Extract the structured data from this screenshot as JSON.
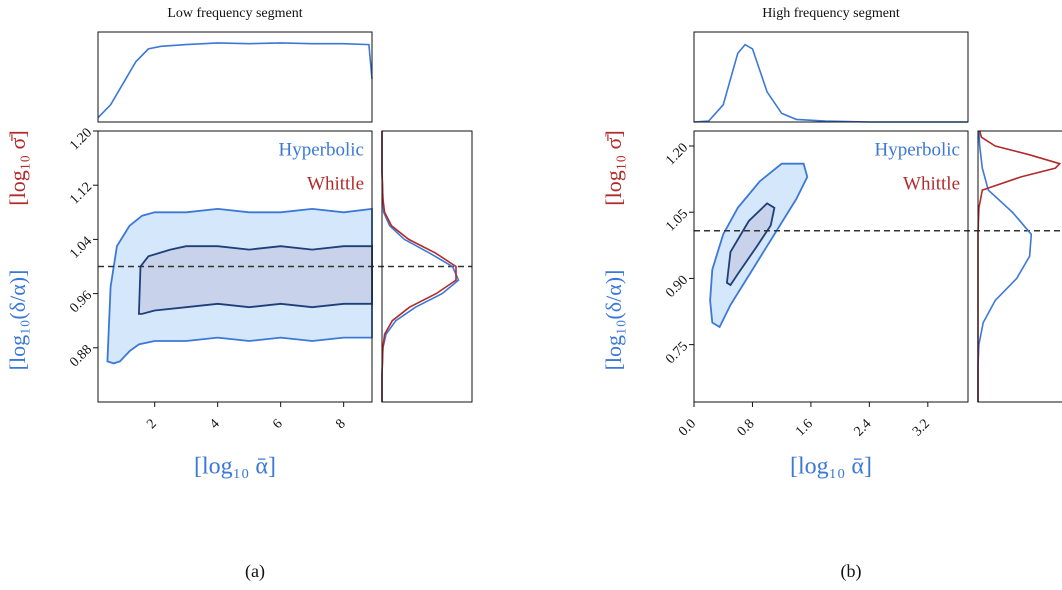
{
  "chart_data": [
    {
      "type": "contour",
      "title": "Low frequency segment",
      "panel_label": "(a)",
      "xlabel": "[log₁₀ ᾱ]",
      "xlim": [
        0.2,
        8.9
      ],
      "ylim": [
        0.8,
        1.2
      ],
      "xticks": [
        2,
        4,
        6,
        8
      ],
      "yticks": [
        0.88,
        0.96,
        1.04,
        1.12,
        {
          "value": 1.2,
          "label": "1.20"
        }
      ],
      "reference_y": 1.0,
      "marginal_lim": [
        0,
        1
      ],
      "series": [
        {
          "name": "Hyperbolic",
          "color": "#3b78d8",
          "ylabel": "[log₁₀(δ/α)]",
          "contours": [
            {
              "color": "#3b78d8",
              "fill": "#d5e7fb",
              "x": [
                0.5,
                0.6,
                0.8,
                1.2,
                1.6,
                2.0,
                3,
                4,
                5,
                6,
                7,
                8,
                8.9,
                8.9,
                8,
                7,
                6,
                5,
                4,
                3,
                2,
                1.5,
                1.2,
                0.9,
                0.7
              ],
              "y": [
                0.86,
                0.97,
                1.03,
                1.06,
                1.075,
                1.08,
                1.08,
                1.085,
                1.08,
                1.08,
                1.085,
                1.08,
                1.085,
                0.895,
                0.895,
                0.89,
                0.895,
                0.89,
                0.895,
                0.89,
                0.89,
                0.885,
                0.875,
                0.86,
                0.857
              ]
            },
            {
              "color": "#1f3f7a",
              "fill": "#c8d2ea",
              "x": [
                1.5,
                1.55,
                1.8,
                2.5,
                3,
                4,
                5,
                6,
                7,
                8,
                8.9,
                8.9,
                8,
                7,
                6,
                5,
                4,
                3,
                2,
                1.6
              ],
              "y": [
                0.93,
                1.0,
                1.015,
                1.025,
                1.03,
                1.03,
                1.025,
                1.03,
                1.025,
                1.03,
                1.03,
                0.945,
                0.945,
                0.94,
                0.945,
                0.94,
                0.945,
                0.94,
                0.935,
                0.93
              ]
            }
          ],
          "marginal_x": {
            "x": [
              0.2,
              0.6,
              1,
              1.4,
              1.8,
              2.2,
              3,
              4,
              5,
              6,
              7,
              8,
              8.8,
              8.9
            ],
            "values": [
              0.05,
              0.2,
              0.45,
              0.7,
              0.85,
              0.88,
              0.9,
              0.92,
              0.91,
              0.92,
              0.91,
              0.91,
              0.9,
              0.5
            ]
          },
          "marginal_y": {
            "y": [
              0.8,
              0.84,
              0.88,
              0.9,
              0.92,
              0.94,
              0.96,
              0.98,
              1.0,
              1.02,
              1.04,
              1.06,
              1.08,
              1.1,
              1.14,
              1.2
            ],
            "values": [
              0,
              0,
              0.01,
              0.047,
              0.16,
              0.39,
              0.7,
              0.89,
              0.82,
              0.55,
              0.26,
              0.09,
              0.02,
              0.01,
              0,
              0
            ]
          }
        },
        {
          "name": "Whittle",
          "color": "#b22b2b",
          "ylabel": "[log₁₀ σ̄]",
          "marginal_y": {
            "y": [
              0.8,
              0.84,
              0.88,
              0.9,
              0.92,
              0.94,
              0.96,
              0.98,
              1.0,
              1.02,
              1.04,
              1.06,
              1.08,
              1.1,
              1.14,
              1.2
            ],
            "values": [
              0,
              0,
              0.01,
              0.03,
              0.12,
              0.32,
              0.63,
              0.86,
              0.86,
              0.62,
              0.31,
              0.11,
              0.03,
              0.01,
              0,
              0
            ]
          }
        }
      ]
    },
    {
      "type": "contour",
      "title": "High frequency segment",
      "panel_label": "(b)",
      "xlabel": "[log₁₀ ᾱ]",
      "xlim": [
        0,
        3.75
      ],
      "ylim": [
        0.62,
        1.234
      ],
      "xticks": [
        {
          "value": 0,
          "label": "0.0"
        },
        0.8,
        1.6,
        2.4,
        3.2
      ],
      "yticks": [
        0.75,
        {
          "value": 0.9,
          "label": "0.90"
        },
        1.05,
        {
          "value": 1.2,
          "label": "1.20"
        }
      ],
      "reference_y": 1.008,
      "marginal_lim": [
        0,
        1
      ],
      "series": [
        {
          "name": "Hyperbolic",
          "color": "#3b78d8",
          "ylabel": "[log₁₀(δ/α)]",
          "contours": [
            {
              "color": "#3b78d8",
              "fill": "#d5e7fb",
              "x": [
                0.25,
                0.22,
                0.25,
                0.4,
                0.6,
                0.9,
                1.2,
                1.5,
                1.55,
                1.4,
                1.1,
                0.8,
                0.5,
                0.35
              ],
              "y": [
                0.8,
                0.85,
                0.92,
                1.0,
                1.06,
                1.12,
                1.16,
                1.16,
                1.13,
                1.08,
                1.0,
                0.92,
                0.84,
                0.79
              ]
            },
            {
              "color": "#1f3f7a",
              "fill": "#c8d2ea",
              "x": [
                0.45,
                0.5,
                0.75,
                1.0,
                1.1,
                1.05,
                0.85,
                0.6,
                0.5
              ],
              "y": [
                0.89,
                0.96,
                1.03,
                1.07,
                1.06,
                1.02,
                0.97,
                0.91,
                0.885
              ]
            }
          ],
          "marginal_x": {
            "x": [
              0,
              0.2,
              0.4,
              0.5,
              0.6,
              0.7,
              0.8,
              0.9,
              1.0,
              1.2,
              1.4,
              1.8,
              2.4,
              3.75
            ],
            "values": [
              0,
              0.01,
              0.2,
              0.5,
              0.8,
              0.9,
              0.85,
              0.6,
              0.35,
              0.1,
              0.03,
              0.01,
              0,
              0
            ]
          },
          "marginal_y": {
            "y": [
              0.62,
              0.7,
              0.75,
              0.8,
              0.85,
              0.9,
              0.95,
              1.0,
              1.05,
              1.1,
              1.15,
              1.2,
              1.234
            ],
            "values": [
              0,
              0,
              0.01,
              0.06,
              0.2,
              0.45,
              0.6,
              0.62,
              0.4,
              0.12,
              0.05,
              0.02,
              0.01
            ]
          }
        },
        {
          "name": "Whittle",
          "color": "#b22b2b",
          "ylabel": "[log₁₀ σ̄]",
          "marginal_y": {
            "y": [
              0.62,
              1.0,
              1.06,
              1.1,
              1.13,
              1.15,
              1.16,
              1.18,
              1.2,
              1.22,
              1.234
            ],
            "values": [
              0,
              0,
              0.01,
              0.05,
              0.5,
              0.9,
              0.95,
              0.6,
              0.2,
              0.04,
              0.02
            ]
          }
        }
      ]
    }
  ]
}
